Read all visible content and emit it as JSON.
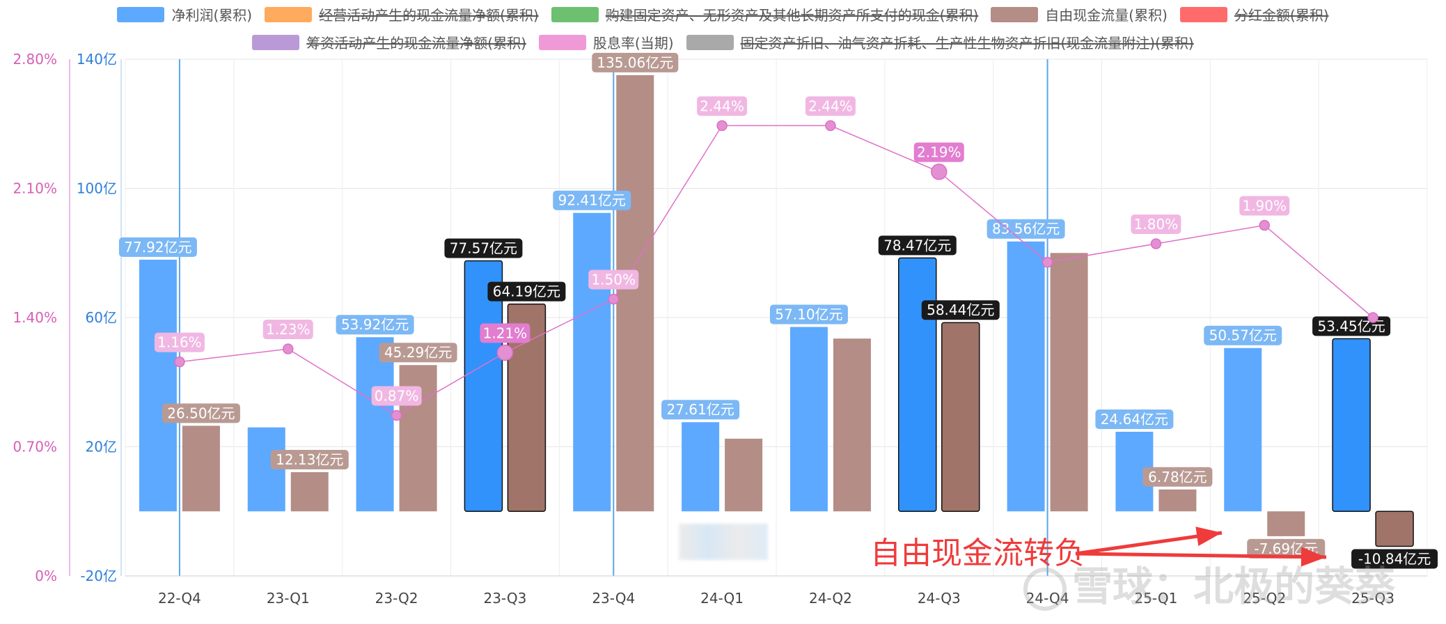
{
  "legend": [
    {
      "label": "净利润(累积)",
      "color": "#5da9ff",
      "active": true
    },
    {
      "label": "经营活动产生的现金流量净额(累积)",
      "color": "#ffaa5c",
      "active": false
    },
    {
      "label": "购建固定资产、无形资产及其他长期资产所支付的现金(累积)",
      "color": "#6cc070",
      "active": false
    },
    {
      "label": "自由现金流量(累积)",
      "color": "#b48d86",
      "active": true
    },
    {
      "label": "分红金额(累积)",
      "color": "#ff6b6b",
      "active": false
    },
    {
      "label": "筹资活动产生的现金流量净额(累积)",
      "color": "#b99ad6",
      "active": false
    },
    {
      "label": "股息率(当期)",
      "color": "#ef9ad6",
      "active": true
    },
    {
      "label": "固定资产折旧、油气资产折耗、生产性生物资产折旧(现金流量附注)(累积)",
      "color": "#a9a9a9",
      "active": false
    }
  ],
  "annotation": "自由现金流转负",
  "watermark": "雪球：北极的葵葵",
  "chart_data": {
    "type": "bar",
    "categories": [
      "22-Q4",
      "23-Q1",
      "23-Q2",
      "23-Q3",
      "23-Q4",
      "24-Q1",
      "24-Q2",
      "24-Q3",
      "24-Q4",
      "25-Q1",
      "25-Q2",
      "25-Q3"
    ],
    "ylim_left": [
      -20,
      140
    ],
    "yticks_left": [
      "-20亿",
      "20亿",
      "60亿",
      "100亿",
      "140亿"
    ],
    "ylim_right": [
      0,
      2.8
    ],
    "yticks_right": [
      "0%",
      "0.70%",
      "1.40%",
      "2.10%",
      "2.80%"
    ],
    "series": [
      {
        "name": "净利润(累积)",
        "type": "bar",
        "color": "#5da9ff",
        "highlight_color": "#3192fb",
        "values": [
          77.92,
          26.0,
          53.92,
          77.57,
          92.41,
          27.61,
          57.1,
          78.47,
          83.56,
          24.64,
          50.57,
          53.45
        ],
        "labels": [
          "77.92亿元",
          "",
          "53.92亿元",
          "77.57亿元",
          "92.41亿元",
          "27.61亿元",
          "57.10亿元",
          "78.47亿元",
          "83.56亿元",
          "24.64亿元",
          "50.57亿元",
          "53.45亿元"
        ],
        "highlight": [
          false,
          false,
          false,
          true,
          false,
          false,
          false,
          true,
          false,
          false,
          false,
          true
        ]
      },
      {
        "name": "自由现金流量(累积)",
        "type": "bar",
        "color": "#b48d86",
        "highlight_color": "#a17469",
        "values": [
          26.5,
          12.13,
          45.29,
          64.19,
          135.06,
          22.5,
          53.5,
          58.44,
          80.0,
          6.78,
          -7.69,
          -10.84
        ],
        "labels": [
          "26.50亿元",
          "12.13亿元",
          "45.29亿元",
          "64.19亿元",
          "135.06亿元",
          "",
          "",
          "58.44亿元",
          "",
          "6.78亿元",
          "-7.69亿元",
          "-10.84亿元"
        ],
        "highlight": [
          false,
          false,
          false,
          true,
          false,
          false,
          false,
          true,
          false,
          false,
          false,
          true
        ]
      },
      {
        "name": "股息率(当期)",
        "type": "line",
        "color": "#e070c8",
        "axis": "right",
        "values": [
          1.16,
          1.23,
          0.87,
          1.21,
          1.5,
          2.44,
          2.44,
          2.19,
          1.7,
          1.8,
          1.9,
          1.4
        ],
        "labels": [
          "1.16%",
          "1.23%",
          "0.87%",
          "1.21%",
          "1.50%",
          "2.44%",
          "2.44%",
          "2.19%",
          "",
          "1.80%",
          "1.90%",
          ""
        ],
        "highlight": [
          false,
          false,
          false,
          true,
          false,
          false,
          false,
          true,
          false,
          false,
          false,
          false
        ]
      }
    ],
    "vertical_markers": [
      "22-Q4",
      "23-Q4",
      "24-Q4"
    ]
  }
}
